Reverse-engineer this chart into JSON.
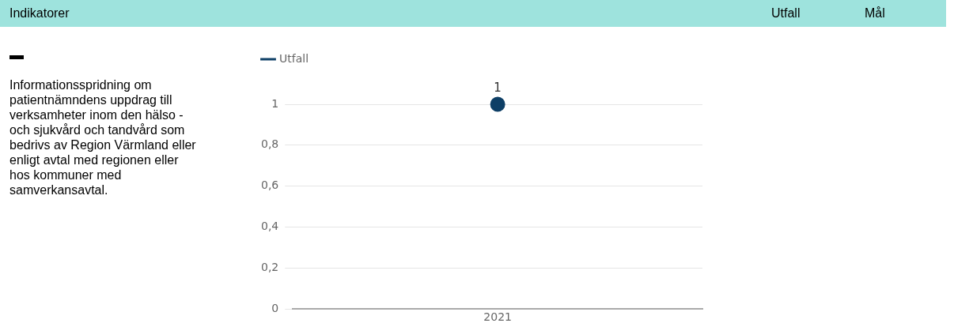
{
  "chart_data": {
    "type": "line",
    "categories": [
      "2021"
    ],
    "series": [
      {
        "name": "Utfall",
        "color": "#0e3f66",
        "values": [
          1
        ]
      }
    ],
    "ylim": [
      0,
      1
    ],
    "yticks": [
      0,
      {
        "value": 0.2,
        "label": "0,2"
      },
      {
        "value": 0.4,
        "label": "0,4"
      },
      {
        "value": 0.6,
        "label": "0,6"
      },
      {
        "value": 0.8,
        "label": "0,8"
      },
      1
    ],
    "grid": "y",
    "legend": "top left",
    "marker": "circle",
    "data_labels": true,
    "annotations": [
      "Indikatorer",
      "Utfall",
      "Mål",
      "Informationsspridning om patientnämndens uppdrag till verksamheter inom den hälso - och sjukvård och tandvård som bedrivs av Region Värmland eller enligt avtal med regionen eller hos kommuner med samverkansavtal."
    ]
  }
}
